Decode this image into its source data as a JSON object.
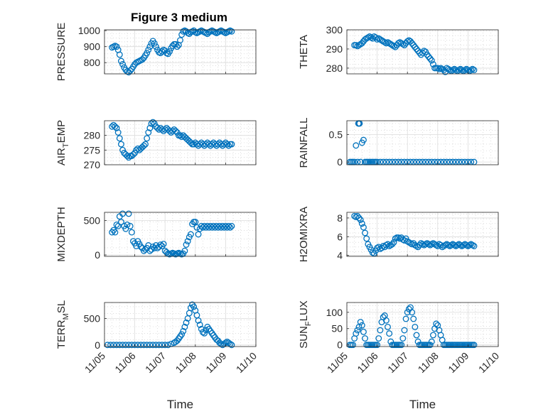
{
  "figure": {
    "title": "Figure 3 medium"
  },
  "colors": {
    "series": "#0072bd",
    "axis": "#262626"
  },
  "chart_data": [
    {
      "type": "scatter",
      "ylabel": "PRESSURE",
      "title": "Figure 3 medium",
      "xlabel": "",
      "grid": true,
      "xlim": [
        "11/05",
        "11/10"
      ],
      "ylim": [
        730,
        1005
      ],
      "yticks": [
        800,
        900,
        1000
      ],
      "x_days_from": "11/05",
      "x": [
        0.25,
        0.3,
        0.35,
        0.4,
        0.45,
        0.5,
        0.55,
        0.6,
        0.65,
        0.7,
        0.75,
        0.8,
        0.85,
        0.9,
        0.95,
        1.0,
        1.05,
        1.1,
        1.15,
        1.2,
        1.25,
        1.3,
        1.35,
        1.4,
        1.45,
        1.5,
        1.55,
        1.6,
        1.65,
        1.7,
        1.75,
        1.8,
        1.85,
        1.9,
        1.95,
        2.0,
        2.05,
        2.1,
        2.15,
        2.2,
        2.25,
        2.3,
        2.35,
        2.4,
        2.45,
        2.5,
        2.55,
        2.6,
        2.65,
        2.7,
        2.75,
        2.8,
        2.85,
        2.9,
        2.95,
        3.0,
        3.05,
        3.1,
        3.15,
        3.2,
        3.25,
        3.3,
        3.35,
        3.4,
        3.45,
        3.5,
        3.55,
        3.6,
        3.65,
        3.7,
        3.75,
        3.8,
        3.85,
        3.9,
        3.95,
        4.0,
        4.05,
        4.1,
        4.15,
        4.2
      ],
      "y": [
        895,
        900,
        905,
        900,
        880,
        850,
        810,
        790,
        770,
        755,
        745,
        740,
        750,
        760,
        775,
        790,
        800,
        805,
        810,
        815,
        820,
        830,
        845,
        860,
        880,
        900,
        920,
        935,
        920,
        900,
        880,
        865,
        860,
        870,
        880,
        875,
        860,
        855,
        870,
        890,
        905,
        915,
        915,
        900,
        910,
        940,
        975,
        995,
        1000,
        995,
        985,
        980,
        990,
        995,
        1000,
        990,
        985,
        990,
        995,
        1000,
        995,
        990,
        985,
        980,
        990,
        995,
        1000,
        995,
        990,
        985,
        990,
        995,
        1000,
        995,
        990,
        985,
        990,
        995,
        1000,
        995
      ]
    },
    {
      "type": "scatter",
      "ylabel": "THETA",
      "xlabel": "",
      "grid": true,
      "xlim": [
        "11/05",
        "11/10"
      ],
      "ylim": [
        277,
        300
      ],
      "yticks": [
        280,
        290,
        300
      ],
      "x_days_from": "11/05",
      "x": [
        0.25,
        0.3,
        0.35,
        0.4,
        0.45,
        0.5,
        0.55,
        0.6,
        0.65,
        0.7,
        0.75,
        0.8,
        0.85,
        0.9,
        0.95,
        1.0,
        1.05,
        1.1,
        1.15,
        1.2,
        1.25,
        1.3,
        1.35,
        1.4,
        1.45,
        1.5,
        1.55,
        1.6,
        1.65,
        1.7,
        1.75,
        1.8,
        1.85,
        1.9,
        1.95,
        2.0,
        2.05,
        2.1,
        2.15,
        2.2,
        2.25,
        2.3,
        2.35,
        2.4,
        2.45,
        2.5,
        2.55,
        2.6,
        2.65,
        2.7,
        2.75,
        2.8,
        2.85,
        2.9,
        2.95,
        3.0,
        3.05,
        3.1,
        3.15,
        3.2,
        3.25,
        3.3,
        3.35,
        3.4,
        3.45,
        3.5,
        3.55,
        3.6,
        3.65,
        3.7,
        3.75,
        3.8,
        3.85,
        3.9,
        3.95,
        4.0,
        4.05,
        4.1,
        4.15,
        4.2
      ],
      "y": [
        292,
        292,
        291.5,
        292,
        292.5,
        293,
        294,
        295,
        295.5,
        296,
        296.5,
        296,
        295.5,
        296.5,
        296,
        295,
        295.5,
        295,
        294.5,
        294,
        293.5,
        293,
        293.5,
        293,
        292.5,
        292,
        291.5,
        291,
        292,
        293,
        293.5,
        293,
        292.5,
        292,
        293,
        294,
        294.5,
        294,
        293,
        292,
        291,
        290,
        289,
        288,
        287,
        288,
        289,
        288.5,
        287,
        286,
        285,
        284,
        282,
        280,
        280,
        280,
        279.5,
        280,
        279.5,
        279,
        278,
        280,
        279.5,
        279,
        278.5,
        279,
        279.5,
        279,
        278.5,
        279,
        279.5,
        279,
        278.5,
        279,
        279.5,
        279,
        278.5,
        279,
        279.5,
        279
      ]
    },
    {
      "type": "scatter",
      "ylabel": "AIR_TEMP",
      "xlabel": "",
      "grid": true,
      "xlim": [
        "11/05",
        "11/10"
      ],
      "ylim": [
        270,
        285
      ],
      "yticks": [
        270,
        275,
        280
      ],
      "x_days_from": "11/05",
      "x": [
        0.25,
        0.3,
        0.35,
        0.4,
        0.45,
        0.5,
        0.55,
        0.6,
        0.65,
        0.7,
        0.75,
        0.8,
        0.85,
        0.9,
        0.95,
        1.0,
        1.05,
        1.1,
        1.15,
        1.2,
        1.25,
        1.3,
        1.35,
        1.4,
        1.45,
        1.5,
        1.55,
        1.6,
        1.65,
        1.7,
        1.75,
        1.8,
        1.85,
        1.9,
        1.95,
        2.0,
        2.05,
        2.1,
        2.15,
        2.2,
        2.25,
        2.3,
        2.35,
        2.4,
        2.45,
        2.5,
        2.55,
        2.6,
        2.65,
        2.7,
        2.75,
        2.8,
        2.85,
        2.9,
        2.95,
        3.0,
        3.05,
        3.1,
        3.15,
        3.2,
        3.25,
        3.3,
        3.35,
        3.4,
        3.45,
        3.5,
        3.55,
        3.6,
        3.65,
        3.7,
        3.75,
        3.8,
        3.85,
        3.9,
        3.95,
        4.0,
        4.05,
        4.1,
        4.15,
        4.2
      ],
      "y": [
        283,
        283.5,
        283,
        282.5,
        281,
        279,
        277,
        275,
        274,
        273.5,
        273,
        272.5,
        273,
        273,
        273.5,
        274,
        275,
        275.5,
        275,
        275.5,
        276,
        276.5,
        277,
        279,
        281,
        282.5,
        284,
        284.5,
        284,
        283,
        282.5,
        282,
        282.5,
        282,
        281.5,
        282,
        282.5,
        282,
        281.5,
        281,
        281.5,
        282,
        281.5,
        281,
        280,
        280,
        279.5,
        280,
        279.5,
        279,
        278.5,
        278,
        277.5,
        277,
        277,
        277.5,
        277,
        276.5,
        277,
        277.5,
        277,
        276.5,
        277,
        277.5,
        277,
        276.5,
        277,
        277.5,
        277,
        276.5,
        277,
        277.5,
        277,
        276.5,
        277,
        277.5,
        277,
        276.5,
        277,
        277
      ]
    },
    {
      "type": "scatter",
      "ylabel": "RAINFALL",
      "xlabel": "",
      "grid": true,
      "xlim": [
        "11/05",
        "11/10"
      ],
      "ylim": [
        -0.05,
        0.75
      ],
      "yticks": [
        0,
        0.5
      ],
      "x_days_from": "11/05",
      "x": [
        0.1,
        0.15,
        0.2,
        0.25,
        0.3,
        0.35,
        0.38,
        0.4,
        0.42,
        0.45,
        0.5,
        0.55,
        0.6,
        0.65,
        0.7,
        0.75,
        0.8,
        0.85,
        0.9,
        0.95,
        1.0,
        1.1,
        1.2,
        1.3,
        1.4,
        1.5,
        1.6,
        1.7,
        1.8,
        1.9,
        2.0,
        2.1,
        2.2,
        2.3,
        2.4,
        2.5,
        2.6,
        2.7,
        2.8,
        2.9,
        3.0,
        3.1,
        3.2,
        3.3,
        3.4,
        3.5,
        3.6,
        3.7,
        3.8,
        3.9,
        4.0,
        4.1,
        4.2
      ],
      "y": [
        0,
        0,
        0,
        0,
        0.3,
        0,
        0.7,
        0.7,
        0.7,
        0,
        0.35,
        0.4,
        0,
        0,
        0,
        0,
        0,
        0,
        0,
        0,
        0,
        0,
        0,
        0,
        0,
        0,
        0,
        0,
        0,
        0,
        0,
        0,
        0,
        0,
        0,
        0,
        0,
        0,
        0,
        0,
        0,
        0,
        0,
        0,
        0,
        0,
        0,
        0,
        0,
        0,
        0,
        0,
        0
      ]
    },
    {
      "type": "scatter",
      "ylabel": "MIXDEPTH",
      "xlabel": "",
      "grid": true,
      "xlim": [
        "11/05",
        "11/10"
      ],
      "ylim": [
        -20,
        620
      ],
      "yticks": [
        0,
        500
      ],
      "x_days_from": "11/05",
      "x": [
        0.25,
        0.3,
        0.35,
        0.4,
        0.45,
        0.5,
        0.55,
        0.6,
        0.65,
        0.7,
        0.75,
        0.8,
        0.85,
        0.9,
        0.95,
        1.0,
        1.05,
        1.1,
        1.15,
        1.2,
        1.25,
        1.3,
        1.35,
        1.4,
        1.45,
        1.5,
        1.55,
        1.6,
        1.65,
        1.7,
        1.75,
        1.8,
        1.85,
        1.9,
        1.95,
        2.0,
        2.05,
        2.1,
        2.15,
        2.2,
        2.25,
        2.3,
        2.35,
        2.4,
        2.45,
        2.5,
        2.55,
        2.6,
        2.65,
        2.7,
        2.75,
        2.8,
        2.85,
        2.9,
        2.95,
        3.0,
        3.05,
        3.1,
        3.15,
        3.2,
        3.25,
        3.3,
        3.35,
        3.4,
        3.45,
        3.5,
        3.55,
        3.6,
        3.65,
        3.7,
        3.75,
        3.8,
        3.85,
        3.9,
        3.95,
        4.0,
        4.05,
        4.1,
        4.15,
        4.2
      ],
      "y": [
        330,
        360,
        330,
        440,
        420,
        560,
        480,
        600,
        420,
        380,
        440,
        600,
        420,
        330,
        200,
        170,
        130,
        200,
        160,
        120,
        100,
        60,
        80,
        100,
        140,
        60,
        80,
        120,
        100,
        140,
        100,
        120,
        150,
        130,
        160,
        60,
        40,
        20,
        10,
        20,
        30,
        20,
        10,
        20,
        30,
        20,
        10,
        20,
        60,
        150,
        200,
        260,
        300,
        450,
        480,
        480,
        400,
        300,
        380,
        420,
        400,
        420,
        400,
        420,
        400,
        420,
        400,
        420,
        400,
        420,
        400,
        420,
        400,
        420,
        400,
        420,
        400,
        420,
        400,
        420
      ]
    },
    {
      "type": "scatter",
      "ylabel": "H2OMIXRA",
      "xlabel": "",
      "grid": true,
      "xlim": [
        "11/05",
        "11/10"
      ],
      "ylim": [
        3.9,
        8.6
      ],
      "yticks": [
        4,
        6,
        8
      ],
      "x_days_from": "11/05",
      "x": [
        0.25,
        0.3,
        0.35,
        0.4,
        0.45,
        0.5,
        0.55,
        0.6,
        0.65,
        0.7,
        0.75,
        0.8,
        0.85,
        0.9,
        0.95,
        1.0,
        1.05,
        1.1,
        1.15,
        1.2,
        1.25,
        1.3,
        1.35,
        1.4,
        1.45,
        1.5,
        1.55,
        1.6,
        1.65,
        1.7,
        1.75,
        1.8,
        1.85,
        1.9,
        1.95,
        2.0,
        2.05,
        2.1,
        2.15,
        2.2,
        2.25,
        2.3,
        2.35,
        2.4,
        2.45,
        2.5,
        2.55,
        2.6,
        2.65,
        2.7,
        2.75,
        2.8,
        2.85,
        2.9,
        2.95,
        3.0,
        3.05,
        3.1,
        3.15,
        3.2,
        3.25,
        3.3,
        3.35,
        3.4,
        3.45,
        3.5,
        3.55,
        3.6,
        3.65,
        3.7,
        3.75,
        3.8,
        3.85,
        3.9,
        3.95,
        4.0,
        4.05,
        4.1,
        4.15,
        4.2
      ],
      "y": [
        8.2,
        8.1,
        8.2,
        8.0,
        7.8,
        7.4,
        7.0,
        6.4,
        5.8,
        5.2,
        4.9,
        4.6,
        4.3,
        4.2,
        4.5,
        4.8,
        4.9,
        4.7,
        4.8,
        5.0,
        4.9,
        5.1,
        5.2,
        5.0,
        5.1,
        5.2,
        5.4,
        5.8,
        5.9,
        5.9,
        5.8,
        5.9,
        5.7,
        5.6,
        5.8,
        5.5,
        5.4,
        5.3,
        5.2,
        5.3,
        5.1,
        5.0,
        4.9,
        5.1,
        5.3,
        5.2,
        5.1,
        5.2,
        5.3,
        5.2,
        5.1,
        5.2,
        5.3,
        5.2,
        5.1,
        5.0,
        5.2,
        5.1,
        4.9,
        5.0,
        5.1,
        5.2,
        5.1,
        5.0,
        5.1,
        5.2,
        5.1,
        5.0,
        5.1,
        5.2,
        5.1,
        5.0,
        5.1,
        5.2,
        5.1,
        5.0,
        5.1,
        5.2,
        5.1,
        5.0
      ]
    },
    {
      "type": "scatter",
      "ylabel": "TERR_MSL",
      "xlabel": "Time",
      "grid": true,
      "xlim": [
        "11/05",
        "11/10"
      ],
      "xticks": [
        "11/05",
        "11/06",
        "11/07",
        "11/08",
        "11/09",
        "11/10"
      ],
      "ylim": [
        -30,
        800
      ],
      "yticks": [
        0,
        500
      ],
      "x_days_from": "11/05",
      "x": [
        0.1,
        0.2,
        0.3,
        0.4,
        0.5,
        0.6,
        0.7,
        0.8,
        0.9,
        1.0,
        1.1,
        1.2,
        1.3,
        1.4,
        1.5,
        1.6,
        1.7,
        1.8,
        1.9,
        2.0,
        2.1,
        2.2,
        2.3,
        2.35,
        2.4,
        2.45,
        2.5,
        2.55,
        2.6,
        2.65,
        2.7,
        2.75,
        2.8,
        2.85,
        2.9,
        2.95,
        3.0,
        3.05,
        3.1,
        3.15,
        3.2,
        3.25,
        3.3,
        3.35,
        3.4,
        3.45,
        3.5,
        3.55,
        3.6,
        3.65,
        3.7,
        3.75,
        3.8,
        3.85,
        3.9,
        3.95,
        4.0,
        4.05,
        4.1,
        4.15,
        4.2
      ],
      "y": [
        0,
        0,
        0,
        0,
        0,
        0,
        0,
        0,
        0,
        0,
        0,
        0,
        0,
        0,
        0,
        0,
        0,
        0,
        0,
        0,
        0,
        20,
        40,
        60,
        80,
        120,
        160,
        200,
        260,
        340,
        420,
        500,
        600,
        700,
        760,
        720,
        650,
        560,
        460,
        380,
        300,
        240,
        220,
        280,
        340,
        300,
        260,
        220,
        180,
        140,
        100,
        80,
        40,
        20,
        0,
        20,
        40,
        60,
        40,
        20,
        0
      ]
    },
    {
      "type": "scatter",
      "ylabel": "SUN_FLUX",
      "xlabel": "Time",
      "grid": true,
      "xlim": [
        "11/05",
        "11/10"
      ],
      "xticks": [
        "11/05",
        "11/06",
        "11/07",
        "11/08",
        "11/09",
        "11/10"
      ],
      "ylim": [
        -5,
        130
      ],
      "yticks": [
        0,
        50,
        100
      ],
      "x_days_from": "11/05",
      "x": [
        0.1,
        0.15,
        0.2,
        0.25,
        0.3,
        0.35,
        0.4,
        0.45,
        0.5,
        0.55,
        0.6,
        0.65,
        0.7,
        0.75,
        0.8,
        0.85,
        0.9,
        0.95,
        1.0,
        1.05,
        1.1,
        1.15,
        1.2,
        1.25,
        1.3,
        1.35,
        1.4,
        1.45,
        1.5,
        1.55,
        1.6,
        1.65,
        1.7,
        1.75,
        1.8,
        1.85,
        1.9,
        1.95,
        2.0,
        2.05,
        2.1,
        2.15,
        2.2,
        2.25,
        2.3,
        2.35,
        2.4,
        2.45,
        2.5,
        2.55,
        2.6,
        2.65,
        2.7,
        2.75,
        2.8,
        2.85,
        2.9,
        2.95,
        3.0,
        3.05,
        3.1,
        3.15,
        3.2,
        3.25,
        3.3,
        3.35,
        3.4,
        3.45,
        3.5,
        3.55,
        3.6,
        3.65,
        3.7,
        3.75,
        3.8,
        3.85,
        3.9,
        3.95,
        4.0,
        4.05,
        4.1,
        4.15,
        4.2
      ],
      "y": [
        0,
        0,
        0,
        20,
        35,
        45,
        55,
        70,
        60,
        40,
        20,
        0,
        0,
        0,
        0,
        0,
        0,
        0,
        0,
        20,
        45,
        70,
        85,
        90,
        75,
        55,
        35,
        10,
        0,
        0,
        0,
        0,
        0,
        0,
        0,
        20,
        45,
        80,
        100,
        110,
        115,
        100,
        80,
        55,
        30,
        10,
        0,
        0,
        0,
        0,
        0,
        0,
        0,
        0,
        10,
        30,
        50,
        65,
        60,
        45,
        30,
        15,
        0,
        0,
        0,
        0,
        0,
        0,
        0,
        0,
        0,
        0,
        0,
        0,
        0,
        0,
        0,
        0,
        0,
        0,
        0,
        0,
        0
      ]
    }
  ]
}
